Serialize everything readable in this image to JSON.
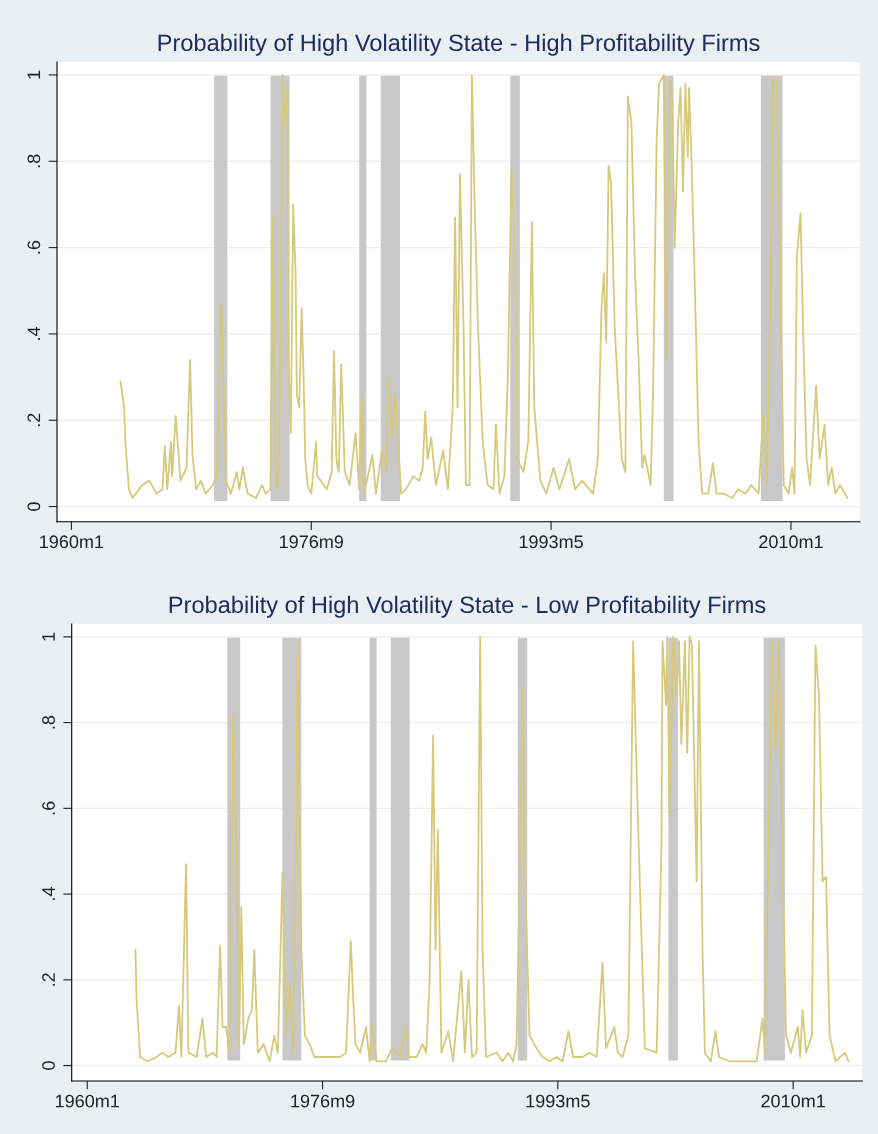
{
  "chart_data": [
    {
      "type": "line",
      "title": "Probability of High Volatility State - High Profitability Firms",
      "xlim": [
        "1959-01-01",
        "2014-10-19"
      ],
      "xticks": [
        {
          "value": "1960-01",
          "label": "1960m1"
        },
        {
          "value": "1976-09",
          "label": "1976m9"
        },
        {
          "value": "1993-05",
          "label": "1993m5"
        },
        {
          "value": "2010-01",
          "label": "2010m1"
        }
      ],
      "ylim": [
        -0.035,
        1.03
      ],
      "yticks": [
        0,
        {
          "value": 0.2,
          "label": ".2"
        },
        {
          "value": 0.4,
          "label": ".4"
        },
        {
          "value": 0.6,
          "label": ".6"
        },
        {
          "value": 0.8,
          "label": ".8"
        },
        1
      ],
      "grid": "y",
      "line_style": "solid",
      "marker": "none",
      "bands": [
        {
          "axis": "x",
          "from": "1969-12",
          "to": "1970-11",
          "color": "#c8c8c8"
        },
        {
          "axis": "x",
          "from": "1973-11",
          "to": "1975-03",
          "color": "#c8c8c8"
        },
        {
          "axis": "x",
          "from": "1980-01",
          "to": "1980-07",
          "color": "#c8c8c8"
        },
        {
          "axis": "x",
          "from": "1981-07",
          "to": "1982-11",
          "color": "#c8c8c8"
        },
        {
          "axis": "x",
          "from": "1990-07",
          "to": "1991-03",
          "color": "#c8c8c8"
        },
        {
          "axis": "x",
          "from": "2001-03",
          "to": "2001-11",
          "color": "#c8c8c8"
        },
        {
          "axis": "x",
          "from": "2007-12",
          "to": "2009-06",
          "color": "#c8c8c8"
        }
      ],
      "series": [
        {
          "color": "#d6c97c",
          "x": [
            "1963-06",
            "1963-09",
            "1963-10",
            "1964-01",
            "1964-04",
            "1964-12",
            "1965-06",
            "1965-12",
            "1966-05",
            "1966-07",
            "1966-09",
            "1966-12",
            "1967-01",
            "1967-04",
            "1967-08",
            "1968-01",
            "1968-04",
            "1968-06",
            "1968-09",
            "1969-01",
            "1969-05",
            "1969-11",
            "1970-02",
            "1970-06",
            "1970-10",
            "1971-02",
            "1971-07",
            "1971-09",
            "1971-12",
            "1972-04",
            "1972-11",
            "1973-04",
            "1973-07",
            "1973-11",
            "1973-12",
            "1974-01",
            "1974-03",
            "1974-05",
            "1974-07",
            "1974-09",
            "1974-11",
            "1975-01",
            "1975-02",
            "1975-04",
            "1975-06",
            "1975-08",
            "1975-09",
            "1975-11",
            "1976-01",
            "1976-03",
            "1976-04",
            "1976-06",
            "1976-09",
            "1977-01",
            "1977-02",
            "1977-05",
            "1977-10",
            "1978-02",
            "1978-04",
            "1978-06",
            "1978-08",
            "1978-10",
            "1979-01",
            "1979-05",
            "1979-10",
            "1980-01",
            "1980-03",
            "1980-05",
            "1980-12",
            "1981-03",
            "1981-08",
            "1981-12",
            "1982-01",
            "1982-05",
            "1982-07",
            "1982-09",
            "1982-12",
            "1983-04",
            "1983-10",
            "1984-03",
            "1984-06",
            "1984-08",
            "1984-10",
            "1985-01",
            "1985-05",
            "1985-11",
            "1986-03",
            "1986-07",
            "1986-09",
            "1986-11",
            "1987-01",
            "1987-04",
            "1987-06",
            "1987-09",
            "1987-11",
            "1988-01",
            "1988-04",
            "1988-08",
            "1988-12",
            "1989-05",
            "1989-07",
            "1989-10",
            "1990-02",
            "1990-05",
            "1990-08",
            "1990-11",
            "1991-01",
            "1991-06",
            "1991-10",
            "1992-01",
            "1992-03",
            "1992-08",
            "1993-01",
            "1993-07",
            "1993-12",
            "1994-08",
            "1995-01",
            "1995-07",
            "1996-04",
            "1996-08",
            "1996-11",
            "1997-01",
            "1997-03",
            "1997-05",
            "1997-07",
            "1997-10",
            "1998-01",
            "1998-04",
            "1998-07",
            "1998-09",
            "1998-12",
            "1999-03",
            "1999-06",
            "1999-09",
            "1999-11",
            "2000-04",
            "2000-06",
            "2000-09",
            "2000-11",
            "2001-03",
            "2001-05",
            "2001-08",
            "2001-10",
            "2001-12",
            "2002-03",
            "2002-05",
            "2002-07",
            "2002-09",
            "2002-11",
            "2002-12",
            "2003-02",
            "2003-05",
            "2003-08",
            "2003-11",
            "2004-04",
            "2004-08",
            "2004-11",
            "2005-05",
            "2005-12",
            "2006-05",
            "2006-11",
            "2007-04",
            "2007-10",
            "2008-02",
            "2008-05",
            "2008-08",
            "2008-10",
            "2009-01",
            "2009-03",
            "2009-07",
            "2009-11",
            "2010-02",
            "2010-04",
            "2010-06",
            "2010-09",
            "2010-11",
            "2011-02",
            "2011-05",
            "2011-10",
            "2012-01",
            "2012-05",
            "2012-08",
            "2012-11",
            "2013-02",
            "2013-06",
            "2013-12"
          ],
          "values": [
            0.29,
            0.23,
            0.15,
            0.04,
            0.02,
            0.05,
            0.06,
            0.03,
            0.04,
            0.14,
            0.04,
            0.15,
            0.07,
            0.21,
            0.06,
            0.09,
            0.34,
            0.12,
            0.04,
            0.06,
            0.03,
            0.05,
            0.07,
            0.47,
            0.06,
            0.03,
            0.08,
            0.04,
            0.09,
            0.03,
            0.02,
            0.05,
            0.03,
            0.04,
            0.37,
            0.67,
            0.09,
            0.04,
            0.26,
            1.0,
            0.89,
            0.98,
            0.34,
            0.17,
            0.7,
            0.54,
            0.26,
            0.23,
            0.46,
            0.26,
            0.11,
            0.05,
            0.03,
            0.15,
            0.07,
            0.06,
            0.04,
            0.08,
            0.36,
            0.11,
            0.08,
            0.33,
            0.08,
            0.05,
            0.17,
            0.04,
            0.26,
            0.03,
            0.12,
            0.03,
            0.13,
            0.08,
            0.3,
            0.16,
            0.26,
            0.17,
            0.03,
            0.04,
            0.07,
            0.06,
            0.09,
            0.22,
            0.11,
            0.16,
            0.05,
            0.13,
            0.04,
            0.23,
            0.67,
            0.23,
            0.77,
            0.42,
            0.05,
            0.05,
            1.0,
            0.73,
            0.42,
            0.15,
            0.05,
            0.04,
            0.19,
            0.03,
            0.07,
            0.3,
            0.78,
            0.58,
            0.11,
            0.08,
            0.15,
            0.66,
            0.23,
            0.06,
            0.03,
            0.09,
            0.04,
            0.11,
            0.04,
            0.06,
            0.03,
            0.11,
            0.46,
            0.54,
            0.38,
            0.79,
            0.75,
            0.42,
            0.26,
            0.11,
            0.08,
            0.95,
            0.89,
            0.54,
            0.34,
            0.09,
            0.12,
            0.05,
            0.26,
            0.85,
            0.98,
            1.0,
            0.34,
            0.99,
            0.96,
            0.6,
            0.89,
            0.97,
            0.73,
            0.98,
            0.81,
            0.97,
            0.81,
            0.5,
            0.15,
            0.03,
            0.03,
            0.1,
            0.03,
            0.03,
            0.02,
            0.04,
            0.03,
            0.05,
            0.03,
            0.22,
            0.05,
            0.5,
            0.99,
            0.99,
            0.73,
            0.05,
            0.03,
            0.09,
            0.03,
            0.58,
            0.68,
            0.42,
            0.11,
            0.05,
            0.28,
            0.11,
            0.19,
            0.05,
            0.09,
            0.03,
            0.05,
            0.02
          ]
        }
      ]
    },
    {
      "type": "line",
      "title": "Probability of High Volatility State - Low Profitability Firms",
      "xlim": [
        "1958-11-25",
        "2014-11-25"
      ],
      "xticks": [
        {
          "value": "1960-01",
          "label": "1960m1"
        },
        {
          "value": "1976-09",
          "label": "1976m9"
        },
        {
          "value": "1993-05",
          "label": "1993m5"
        },
        {
          "value": "2010-01",
          "label": "2010m1"
        }
      ],
      "ylim": [
        -0.036,
        1.03
      ],
      "yticks": [
        0,
        {
          "value": 0.2,
          "label": ".2"
        },
        {
          "value": 0.4,
          "label": ".4"
        },
        {
          "value": 0.6,
          "label": ".6"
        },
        {
          "value": 0.8,
          "label": ".8"
        },
        1
      ],
      "grid": "y",
      "line_style": "solid",
      "marker": "none",
      "bands": [
        {
          "axis": "x",
          "from": "1969-12",
          "to": "1970-11",
          "color": "#c8c8c8"
        },
        {
          "axis": "x",
          "from": "1973-11",
          "to": "1975-03",
          "color": "#c8c8c8"
        },
        {
          "axis": "x",
          "from": "1980-01",
          "to": "1980-07",
          "color": "#c8c8c8"
        },
        {
          "axis": "x",
          "from": "1981-07",
          "to": "1982-11",
          "color": "#c8c8c8"
        },
        {
          "axis": "x",
          "from": "1990-07",
          "to": "1991-03",
          "color": "#c8c8c8"
        },
        {
          "axis": "x",
          "from": "2001-03",
          "to": "2001-11",
          "color": "#c8c8c8"
        },
        {
          "axis": "x",
          "from": "2007-12",
          "to": "2009-06",
          "color": "#c8c8c8"
        }
      ],
      "series": [
        {
          "color": "#d6c97c",
          "x": [
            "1963-06",
            "1963-07",
            "1963-10",
            "1964-04",
            "1964-12",
            "1965-05",
            "1965-10",
            "1966-04",
            "1966-07",
            "1966-09",
            "1967-01",
            "1967-03",
            "1967-10",
            "1968-03",
            "1968-06",
            "1968-12",
            "1969-03",
            "1969-06",
            "1969-08",
            "1969-11",
            "1970-02",
            "1970-05",
            "1970-08",
            "1970-10",
            "1970-12",
            "1971-02",
            "1971-06",
            "1971-09",
            "1971-11",
            "1972-02",
            "1972-07",
            "1972-12",
            "1973-04",
            "1973-07",
            "1973-09",
            "1973-11",
            "1974-02",
            "1974-05",
            "1974-08",
            "1974-11",
            "1974-12",
            "1975-03",
            "1975-06",
            "1975-10",
            "1976-02",
            "1976-12",
            "1977-12",
            "1978-05",
            "1978-09",
            "1978-11",
            "1979-01",
            "1979-05",
            "1979-10",
            "1980-01",
            "1980-03",
            "1980-07",
            "1981-03",
            "1981-08",
            "1982-03",
            "1982-08",
            "1982-10",
            "1983-05",
            "1983-10",
            "1984-01",
            "1984-04",
            "1984-07",
            "1984-09",
            "1984-11",
            "1985-02",
            "1985-08",
            "1985-12",
            "1986-07",
            "1986-10",
            "1987-01",
            "1987-04",
            "1987-08",
            "1987-11",
            "1988-01",
            "1988-04",
            "1989-01",
            "1989-06",
            "1989-11",
            "1990-03",
            "1990-06",
            "1990-09",
            "1990-11",
            "1991-02",
            "1991-05",
            "1991-11",
            "1992-04",
            "1992-10",
            "1993-04",
            "1993-09",
            "1994-02",
            "1994-06",
            "1995-02",
            "1995-08",
            "1996-02",
            "1996-07",
            "1996-10",
            "1997-05",
            "1997-08",
            "1997-12",
            "1998-05",
            "1998-09",
            "1999-01",
            "1999-07",
            "2000-05",
            "2000-09",
            "2000-10",
            "2001-01",
            "2001-02",
            "2001-04",
            "2001-07",
            "2001-10",
            "2001-12",
            "2002-02",
            "2002-05",
            "2002-07",
            "2002-09",
            "2002-11",
            "2003-03",
            "2003-05",
            "2003-08",
            "2003-10",
            "2004-03",
            "2004-07",
            "2004-10",
            "2005-07",
            "2006-06",
            "2007-06",
            "2007-11",
            "2008-01",
            "2008-04",
            "2008-07",
            "2008-10",
            "2009-01",
            "2009-04",
            "2009-07",
            "2009-11",
            "2010-05",
            "2010-07",
            "2010-09",
            "2010-12",
            "2011-05",
            "2011-08",
            "2011-11",
            "2012-02",
            "2012-05",
            "2012-08",
            "2013-01",
            "2013-09",
            "2013-12"
          ],
          "values": [
            0.27,
            0.15,
            0.02,
            0.01,
            0.02,
            0.03,
            0.02,
            0.03,
            0.14,
            0.02,
            0.47,
            0.03,
            0.02,
            0.11,
            0.02,
            0.03,
            0.02,
            0.28,
            0.09,
            0.09,
            0.03,
            0.82,
            0.5,
            0.05,
            0.37,
            0.05,
            0.11,
            0.13,
            0.27,
            0.03,
            0.05,
            0.01,
            0.07,
            0.03,
            0.24,
            0.45,
            0.07,
            0.19,
            0.03,
            0.62,
            0.99,
            0.27,
            0.07,
            0.05,
            0.02,
            0.02,
            0.02,
            0.03,
            0.29,
            0.16,
            0.05,
            0.03,
            0.09,
            0.01,
            0.1,
            0.01,
            0.01,
            0.04,
            0.02,
            0.09,
            0.02,
            0.02,
            0.05,
            0.03,
            0.19,
            0.77,
            0.27,
            0.55,
            0.03,
            0.08,
            0.01,
            0.22,
            0.03,
            0.2,
            0.02,
            0.03,
            1.0,
            0.27,
            0.02,
            0.03,
            0.01,
            0.03,
            0.01,
            0.05,
            0.5,
            0.88,
            0.35,
            0.07,
            0.04,
            0.02,
            0.01,
            0.02,
            0.01,
            0.08,
            0.02,
            0.02,
            0.03,
            0.02,
            0.24,
            0.04,
            0.09,
            0.03,
            0.02,
            0.07,
            0.99,
            0.58,
            0.04,
            0.03,
            0.5,
            0.99,
            0.84,
            1.0,
            0.58,
            1.0,
            0.86,
            0.99,
            0.75,
            0.99,
            0.73,
            1.0,
            0.98,
            0.43,
            0.99,
            0.27,
            0.03,
            0.01,
            0.08,
            0.02,
            0.01,
            0.01,
            0.01,
            0.11,
            0.03,
            0.5,
            0.99,
            0.74,
            0.99,
            0.5,
            0.07,
            0.03,
            0.09,
            0.02,
            0.13,
            0.03,
            0.07,
            0.98,
            0.86,
            0.43,
            0.44,
            0.07,
            0.01,
            0.03,
            0.01
          ]
        }
      ]
    }
  ]
}
